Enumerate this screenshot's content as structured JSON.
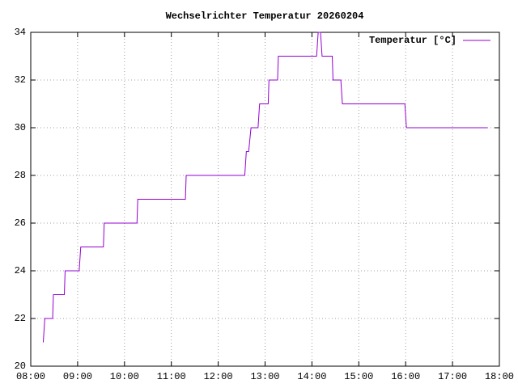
{
  "chart_data": {
    "type": "line",
    "title": "Wechselrichter Temperatur 20260204",
    "x": [
      "08:16",
      "08:18",
      "08:28",
      "08:29",
      "08:43",
      "08:44",
      "09:02",
      "09:04",
      "09:33",
      "09:34",
      "10:16",
      "10:17",
      "11:18",
      "11:19",
      "12:34",
      "12:36",
      "12:39",
      "12:42",
      "12:51",
      "12:53",
      "13:04",
      "13:05",
      "13:16",
      "13:17",
      "14:06",
      "14:08",
      "14:11",
      "14:13",
      "14:26",
      "14:27",
      "14:37",
      "14:39",
      "15:59",
      "16:01",
      "17:45"
    ],
    "series": [
      {
        "name": "Temperatur [°C]",
        "color": "#9400d3",
        "values": [
          21,
          22,
          22,
          23,
          23,
          24,
          24,
          25,
          25,
          26,
          26,
          27,
          27,
          28,
          28,
          29,
          29,
          30,
          30,
          31,
          31,
          32,
          32,
          33,
          33,
          34,
          34,
          33,
          33,
          32,
          32,
          31,
          31,
          30,
          30
        ]
      }
    ],
    "xlim": [
      "08:00",
      "18:00"
    ],
    "xticks": [
      "08:00",
      "09:00",
      "10:00",
      "11:00",
      "12:00",
      "13:00",
      "14:00",
      "15:00",
      "16:00",
      "17:00",
      "18:00"
    ],
    "ylim": [
      20,
      34
    ],
    "yticks": [
      20,
      22,
      24,
      26,
      28,
      30,
      32,
      34
    ],
    "grid": true,
    "legend": "top-right"
  }
}
